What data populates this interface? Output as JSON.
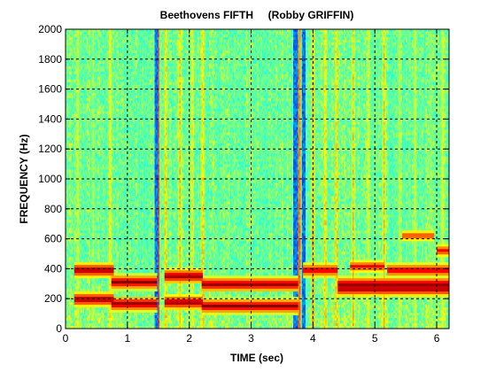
{
  "chart_data": {
    "type": "heatmap",
    "title": "Beethovens FIFTH     (Robby GRIFFIN)",
    "xlabel": "TIME (sec)",
    "ylabel": "FREQUENCY (Hz)",
    "xlim": [
      0,
      6.2
    ],
    "ylim": [
      0,
      2000
    ],
    "x_ticks": [
      "0",
      "1",
      "2",
      "3",
      "4",
      "5",
      "6"
    ],
    "y_ticks": [
      "0",
      "200",
      "400",
      "600",
      "800",
      "1000",
      "1200",
      "1400",
      "1600",
      "1800",
      "2000"
    ],
    "grid": true,
    "grid_style": "dashed",
    "colormap": "jet",
    "background_level": 0.45,
    "onsets": [
      {
        "t": 0.2,
        "level": 0.6
      },
      {
        "t": 0.45,
        "level": 0.55
      },
      {
        "t": 0.72,
        "level": 0.7
      },
      {
        "t": 1.5,
        "level": 0.95
      },
      {
        "t": 1.62,
        "level": 0.75
      },
      {
        "t": 1.85,
        "level": 0.7
      },
      {
        "t": 2.05,
        "level": 0.65
      },
      {
        "t": 2.22,
        "level": 0.75
      },
      {
        "t": 3.78,
        "level": 0.9
      },
      {
        "t": 4.0,
        "level": 0.8
      },
      {
        "t": 4.2,
        "level": 0.75
      },
      {
        "t": 4.38,
        "level": 0.75
      },
      {
        "t": 4.65,
        "level": 0.7
      },
      {
        "t": 4.9,
        "level": 0.65
      },
      {
        "t": 5.15,
        "level": 0.7
      },
      {
        "t": 5.4,
        "level": 0.6
      },
      {
        "t": 5.65,
        "level": 0.6
      },
      {
        "t": 5.9,
        "level": 0.55
      },
      {
        "t": 6.1,
        "level": 0.65
      }
    ],
    "dark_bands": [
      {
        "t": 1.47,
        "width": 0.03
      },
      {
        "t": 3.72,
        "width": 0.04
      },
      {
        "t": 3.85,
        "width": 0.03
      }
    ],
    "notes": [
      {
        "t_start": 0.15,
        "t_end": 0.78,
        "freqs": [
          195,
          390
        ],
        "level": 1.0
      },
      {
        "t_start": 0.75,
        "t_end": 1.48,
        "freqs": [
          165,
          310
        ],
        "level": 1.0
      },
      {
        "t_start": 1.6,
        "t_end": 2.22,
        "freqs": [
          175,
          350
        ],
        "level": 1.0
      },
      {
        "t_start": 2.2,
        "t_end": 3.75,
        "freqs": [
          150,
          295
        ],
        "level": 1.0
      },
      {
        "t_start": 3.85,
        "t_end": 4.4,
        "freqs": [
          390
        ],
        "level": 0.95
      },
      {
        "t_start": 4.4,
        "t_end": 6.2,
        "freqs": [
          265,
          295
        ],
        "level": 1.0
      },
      {
        "t_start": 4.6,
        "t_end": 5.15,
        "freqs": [
          415
        ],
        "level": 0.9
      },
      {
        "t_start": 5.2,
        "t_end": 6.2,
        "freqs": [
          390
        ],
        "level": 0.95
      },
      {
        "t_start": 5.45,
        "t_end": 5.95,
        "freqs": [
          620
        ],
        "level": 0.85
      },
      {
        "t_start": 6.0,
        "t_end": 6.2,
        "freqs": [
          520
        ],
        "level": 0.9
      }
    ]
  }
}
